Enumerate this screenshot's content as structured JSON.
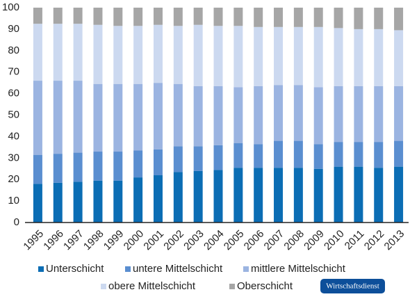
{
  "chart_data": {
    "type": "stacked_bar",
    "categories": [
      "1995",
      "1996",
      "1997",
      "1998",
      "1999",
      "2000",
      "2001",
      "2002",
      "2003",
      "2004",
      "2005",
      "2006",
      "2007",
      "2008",
      "2009",
      "2010",
      "2011",
      "2012",
      "2013"
    ],
    "series": [
      {
        "name": "Unterschicht",
        "color": "#0b6db4",
        "values": [
          18,
          18.5,
          19,
          19.5,
          19.5,
          21,
          22,
          23.5,
          24,
          24.5,
          25.5,
          25.5,
          25.5,
          25.5,
          25,
          26,
          26,
          25.5,
          26
        ]
      },
      {
        "name": "untere Mittelschicht",
        "color": "#5a8ed0",
        "values": [
          13.5,
          13.5,
          13.5,
          13.5,
          13.5,
          12.5,
          12,
          12,
          11.5,
          11.5,
          11.5,
          11,
          12.5,
          12.5,
          11.5,
          11.5,
          11.5,
          12,
          12
        ]
      },
      {
        "name": "mittlere Mittelschicht",
        "color": "#9bb4e1",
        "values": [
          34.5,
          34,
          33.5,
          31.5,
          31.5,
          31,
          31,
          29,
          28,
          27.5,
          26,
          27,
          26,
          26,
          26.5,
          26,
          26,
          26,
          25.5
        ]
      },
      {
        "name": "obere Mittelschicht",
        "color": "#ccd9f0",
        "values": [
          26.5,
          26.5,
          26.5,
          27.5,
          27,
          27,
          27,
          27,
          28.5,
          28,
          28.5,
          27.5,
          27,
          27,
          28,
          27,
          26.5,
          26.5,
          26
        ]
      },
      {
        "name": "Oberschicht",
        "color": "#a6a6a6",
        "values": [
          7.5,
          7.5,
          7.5,
          8,
          8.5,
          8.5,
          8,
          8.5,
          8,
          8.5,
          8.5,
          9,
          9,
          9,
          9,
          9.5,
          10,
          10,
          10.5
        ]
      }
    ],
    "ylim": [
      0,
      100
    ],
    "yticks": [
      0,
      10,
      20,
      30,
      40,
      50,
      60,
      70,
      80,
      90,
      100
    ],
    "grid": false,
    "source": "Wirtschaftsdienst"
  }
}
